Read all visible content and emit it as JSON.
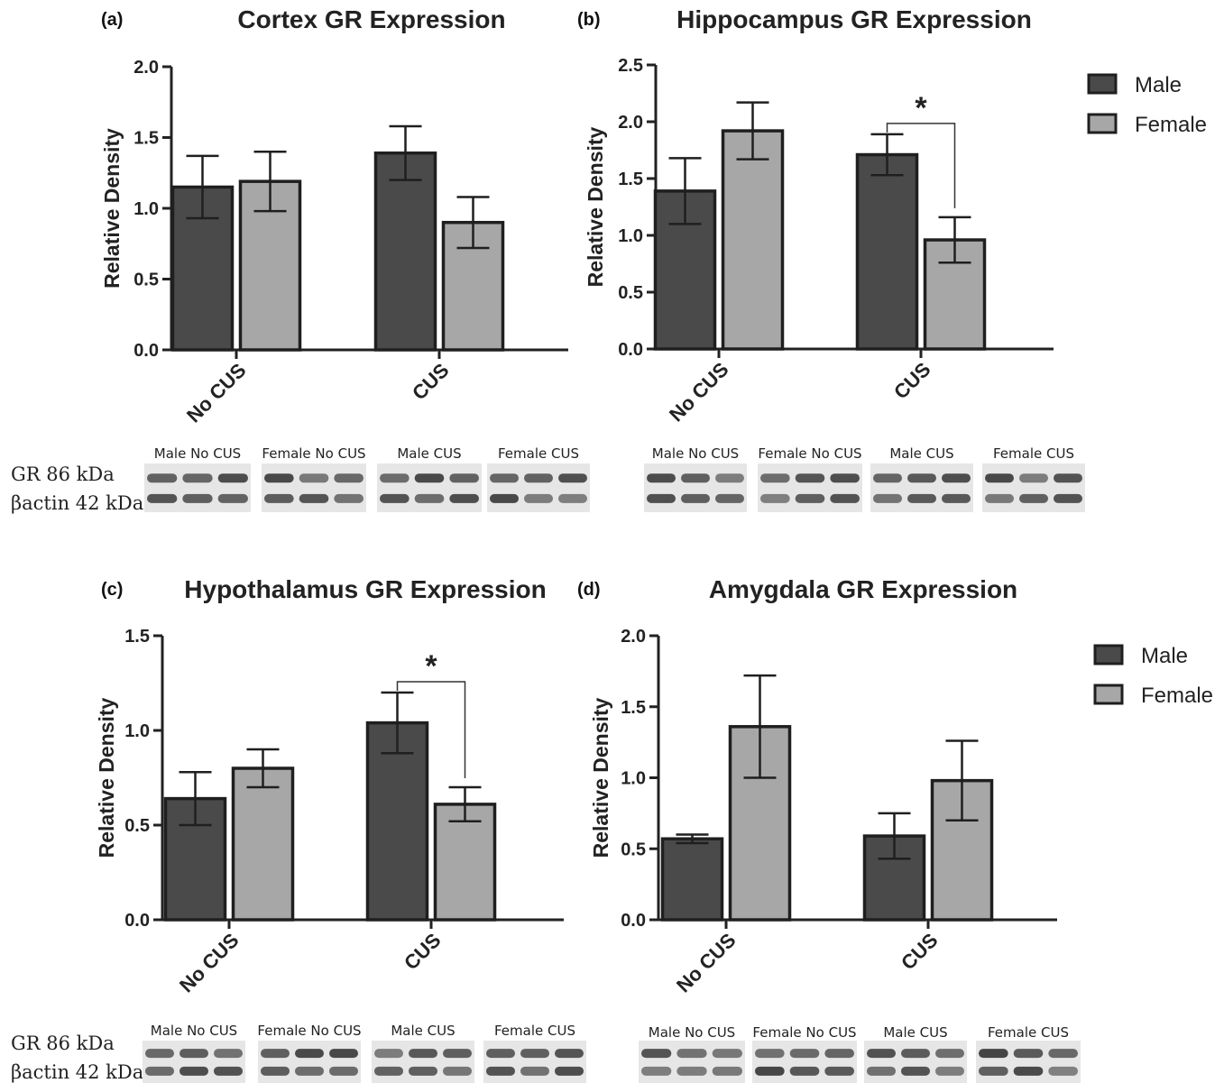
{
  "colors": {
    "male": "#4a4a4a",
    "female": "#a7a7a7",
    "axis": "#222222",
    "outline": "#1f1f1f"
  },
  "legend": {
    "items": [
      {
        "label": "Male",
        "color": "#4a4a4a"
      },
      {
        "label": "Female",
        "color": "#a7a7a7"
      }
    ]
  },
  "chart_data": [
    {
      "panel": "(a)",
      "type": "bar",
      "title": "Cortex GR Expression",
      "ylabel": "Relative Density",
      "xlabel": "",
      "categories": [
        "No CUS",
        "CUS"
      ],
      "ylim": [
        0,
        2.0
      ],
      "yticks": [
        "0.0",
        "0.5",
        "1.0",
        "1.5",
        "2.0"
      ],
      "series": [
        {
          "name": "Male",
          "values": [
            1.15,
            1.39
          ],
          "errors": [
            0.22,
            0.19
          ]
        },
        {
          "name": "Female",
          "values": [
            1.19,
            0.9
          ],
          "errors": [
            0.21,
            0.18
          ]
        }
      ],
      "annotations": [],
      "legend": "none",
      "blot": {
        "lanes": [
          "Male No CUS",
          "Female No CUS",
          "Male CUS",
          "Female CUS"
        ],
        "row_labels": [
          "GR 86 kDa",
          "βactin 42 kDa"
        ]
      }
    },
    {
      "panel": "(b)",
      "type": "bar",
      "title": "Hippocampus GR Expression",
      "ylabel": "Relative Density",
      "xlabel": "",
      "categories": [
        "No CUS",
        "CUS"
      ],
      "ylim": [
        0,
        2.5
      ],
      "yticks": [
        "0.0",
        "0.5",
        "1.0",
        "1.5",
        "2.0",
        "2.5"
      ],
      "series": [
        {
          "name": "Male",
          "values": [
            1.39,
            1.71
          ],
          "errors": [
            0.29,
            0.18
          ]
        },
        {
          "name": "Female",
          "values": [
            1.92,
            0.96
          ],
          "errors": [
            0.25,
            0.2
          ]
        }
      ],
      "annotations": [
        {
          "text": "*",
          "category": "CUS"
        }
      ],
      "legend": "right",
      "blot": {
        "lanes": [
          "Male No CUS",
          "Female No CUS",
          "Male CUS",
          "Female CUS"
        ],
        "row_labels": []
      }
    },
    {
      "panel": "(c)",
      "type": "bar",
      "title": "Hypothalamus GR Expression",
      "ylabel": "Relative Density",
      "xlabel": "",
      "categories": [
        "No CUS",
        "CUS"
      ],
      "ylim": [
        0,
        1.5
      ],
      "yticks": [
        "0.0",
        "0.5",
        "1.0",
        "1.5"
      ],
      "series": [
        {
          "name": "Male",
          "values": [
            0.64,
            1.04
          ],
          "errors": [
            0.14,
            0.16
          ]
        },
        {
          "name": "Female",
          "values": [
            0.8,
            0.61
          ],
          "errors": [
            0.1,
            0.09
          ]
        }
      ],
      "annotations": [
        {
          "text": "*",
          "category": "CUS"
        }
      ],
      "legend": "none",
      "blot": {
        "lanes": [
          "Male No CUS",
          "Female No CUS",
          "Male CUS",
          "Female CUS"
        ],
        "row_labels": [
          "GR 86 kDa",
          "βactin 42 kDa"
        ]
      }
    },
    {
      "panel": "(d)",
      "type": "bar",
      "title": "Amygdala GR Expression",
      "ylabel": "Relative Density",
      "xlabel": "",
      "categories": [
        "No CUS",
        "CUS"
      ],
      "ylim": [
        0,
        2.0
      ],
      "yticks": [
        "0.0",
        "0.5",
        "1.0",
        "1.5",
        "2.0"
      ],
      "series": [
        {
          "name": "Male",
          "values": [
            0.57,
            0.59
          ],
          "errors": [
            0.03,
            0.16
          ]
        },
        {
          "name": "Female",
          "values": [
            1.36,
            0.98
          ],
          "errors": [
            0.36,
            0.28
          ]
        }
      ],
      "annotations": [],
      "legend": "right",
      "blot": {
        "lanes": [
          "Male No CUS",
          "Female No CUS",
          "Male CUS",
          "Female CUS"
        ],
        "row_labels": []
      }
    }
  ]
}
